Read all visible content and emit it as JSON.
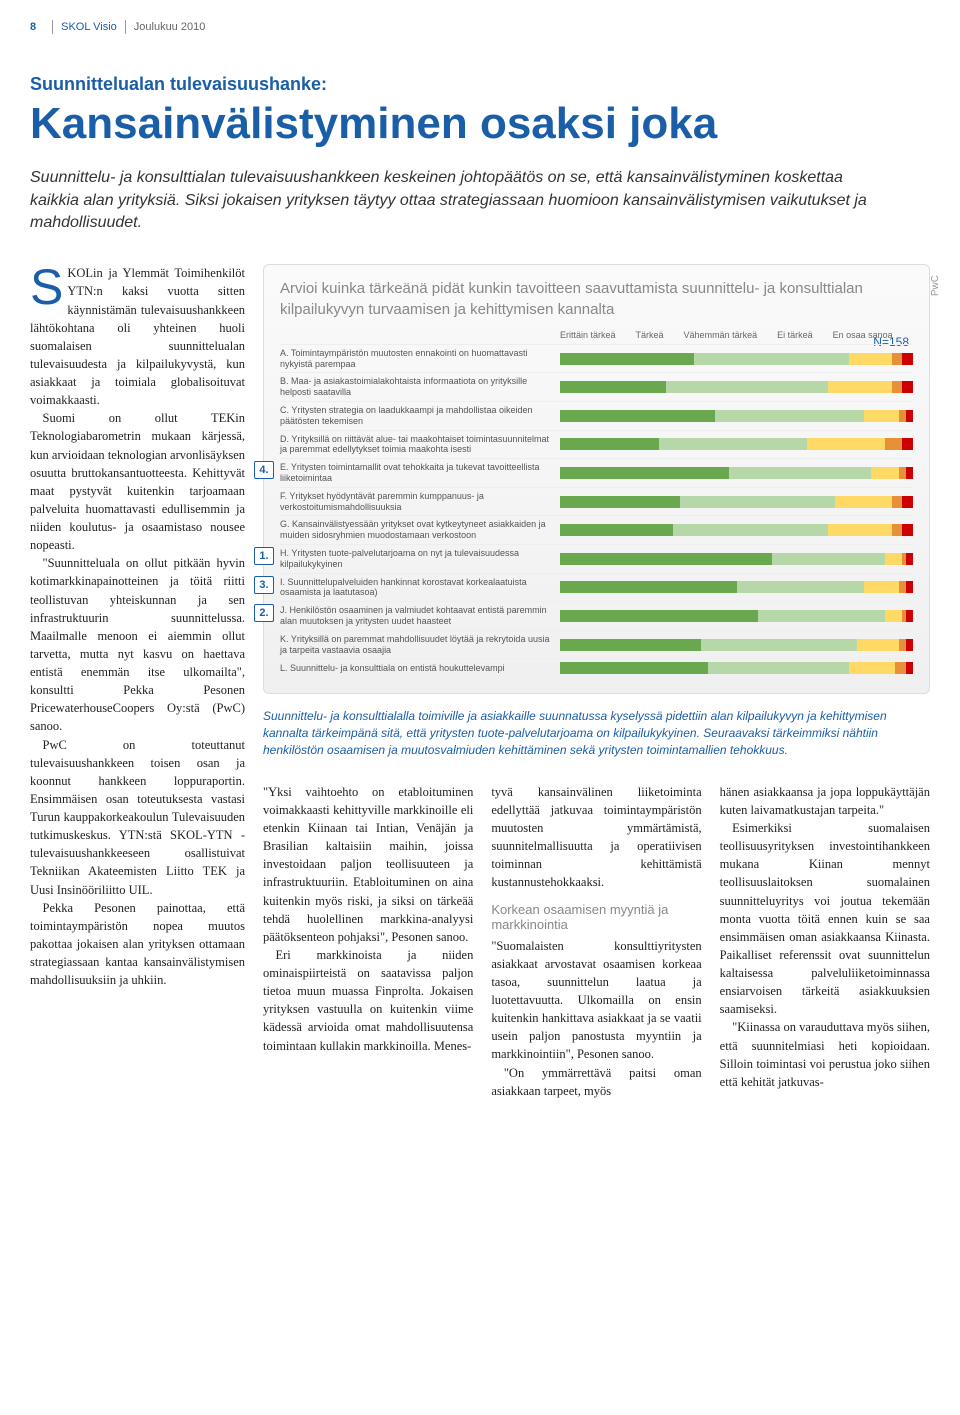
{
  "header": {
    "page_number": "8",
    "publication": "SKOL Visio",
    "issue": "Joulukuu 2010"
  },
  "article": {
    "kicker": "Suunnittelualan tulevaisuushanke:",
    "headline": "Kansainvälistyminen osaksi joka",
    "lead": "Suunnittelu- ja konsulttialan tulevaisuushankkeen keskeinen johtopäätös on se, että kansainvälistyminen koskettaa kaikkia alan yrityksiä. Siksi jokaisen yrityksen täytyy ottaa strategiassaan huomioon kansainvälistymisen vaikutukset ja mahdollisuudet."
  },
  "dropcap": "S",
  "left_col_paras": [
    "KOLin ja Ylemmät Toimihenkilöt YTN:n kaksi vuotta sitten käynnistämän tulevaisuushankkeen lähtökohtana oli yhteinen huoli suomalaisen suunnittelualan tulevaisuudesta ja kilpailukyvystä, kun asiakkaat ja toimiala globalisoituvat voimakkaasti.",
    "Suomi on ollut TEKin Teknologiabarometrin mukaan kärjessä, kun arvioidaan teknologian arvonlisäyksen osuutta bruttokansantuotteesta. Kehittyvät maat pystyvät kuitenkin tarjoamaan palveluita huomattavasti edullisemmin ja niiden koulutus- ja osaamistaso nousee nopeasti.",
    "\"Suunnitteluala on ollut pitkään hyvin kotimarkkinapainotteinen ja töitä riitti teollistuvan yhteiskunnan ja sen infrastruktuurin suunnittelussa. Maailmalle menoon ei aiemmin ollut tarvetta, mutta nyt kasvu on haettava entistä enemmän itse ulkomailta\", konsultti Pekka Pesonen PricewaterhouseCoopers Oy:stä (PwC) sanoo.",
    "PwC on toteuttanut tulevaisuushankkeen toisen osan ja koonnut hankkeen loppuraportin. Ensimmäisen osan toteutuksesta vastasi Turun kauppakorkeakoulun Tulevaisuuden tutkimuskeskus. YTN:stä SKOL-YTN -tulevaisuushankkeeseen osallistuivat Tekniikan Akateemisten Liitto TEK ja Uusi Insinööriliitto UIL.",
    "Pekka Pesonen painottaa, että toimintaympäristön nopea muutos pakottaa jokaisen alan yrityksen ottamaan strategiassaan kantaa kansainvälistymisen mahdollisuuksiin ja uhkiin."
  ],
  "chart": {
    "title": "Arvioi kuinka tärkeänä pidät kunkin tavoitteen saavuttamista suunnittelu- ja konsulttialan kilpailukyvyn turvaamisen ja kehittymisen kannalta",
    "n_label": "N=158",
    "source": "PwC",
    "legend": [
      "Erittäin tärkeä",
      "Tärkeä",
      "Vähemmän tärkeä",
      "Ei tärkeä",
      "En osaa sanoa"
    ],
    "colors": {
      "very_important": "#6aa84f",
      "important": "#b6d7a8",
      "less_important": "#ffd966",
      "not_important": "#e69138",
      "dont_know": "#cc0000"
    },
    "rows": [
      {
        "label": "A. Toimintaympäristön muutosten ennakointi on huomattavasti nykyistä parempaa",
        "segs": [
          38,
          44,
          12,
          3,
          3
        ]
      },
      {
        "label": "B. Maa- ja asiakastoimialakohtaista informaatiota on yrityksille helposti saatavilla",
        "segs": [
          30,
          46,
          18,
          3,
          3
        ]
      },
      {
        "label": "C. Yritysten strategia on laadukkaampi ja mahdollistaa oikeiden päätösten tekemisen",
        "segs": [
          44,
          42,
          10,
          2,
          2
        ]
      },
      {
        "label": "D. Yrityksillä on riittävät alue- tai maakohtaiset toimintasuunnitelmat ja paremmat edellytykset toimia maakohta isesti",
        "segs": [
          28,
          42,
          22,
          5,
          3
        ]
      },
      {
        "label": "E. Yritysten toimintamallit ovat tehokkaita ja tukevat tavoitteellista liiketoimintaa",
        "segs": [
          48,
          40,
          8,
          2,
          2
        ],
        "callout": "4."
      },
      {
        "label": "F. Yritykset hyödyntävät paremmin kumppanuus- ja verkostoitumismahdollisuuksia",
        "segs": [
          34,
          44,
          16,
          3,
          3
        ]
      },
      {
        "label": "G. Kansainvälistyessään yritykset ovat kytkeytyneet asiakkaiden ja muiden sidosryhmien muodostamaan verkostoon",
        "segs": [
          32,
          44,
          18,
          3,
          3
        ]
      },
      {
        "label": "H. Yritysten tuote-palvelutarjoama on nyt ja tulevaisuudessa kilpailukykyinen",
        "segs": [
          60,
          32,
          5,
          1,
          2
        ],
        "callout": "1."
      },
      {
        "label": "I. Suunnittelupalveluiden hankinnat korostavat korkealaatuista osaamista ja laatutasoa)",
        "segs": [
          50,
          36,
          10,
          2,
          2
        ],
        "callout": "3."
      },
      {
        "label": "J. Henkilöstön osaaminen ja valmiudet kohtaavat entistä paremmin alan muutoksen ja yritysten uudet haasteet",
        "segs": [
          56,
          36,
          5,
          1,
          2
        ],
        "callout": "2."
      },
      {
        "label": "K. Yrityksillä on paremmat mahdollisuudet löytää ja rekrytoida uusia ja tarpeita vastaavia osaajia",
        "segs": [
          40,
          44,
          12,
          2,
          2
        ]
      },
      {
        "label": "L. Suunnittelu- ja konsulttiala on entistä houkuttelevampi",
        "segs": [
          42,
          40,
          13,
          3,
          2
        ]
      }
    ]
  },
  "caption": "Suunnittelu- ja konsulttialalla toimiville ja asiakkaille suunnatussa kyselyssä pidettiin alan kilpailukyvyn ja kehittymisen kannalta tärkeimpänä sitä, että yritysten tuote-palvelutarjoama on kilpailukykyinen. Seuraavaksi tärkeimmiksi nähtiin henkilöstön osaamisen ja muutosvalmiuden kehittäminen sekä yritysten toimintamallien tehokkuus.",
  "lower": {
    "c1": [
      "\"Yksi vaihtoehto on etabloituminen voimakkaasti kehittyville markkinoille eli etenkin Kiinaan tai Intian, Venäjän ja Brasilian kaltaisiin maihin, joissa investoidaan paljon teollisuuteen ja infrastruktuuriin. Etabloituminen on aina kuitenkin myös riski, ja siksi on tärkeää tehdä huolellinen markkina-analyysi päätöksenteon pohjaksi\", Pesonen sanoo.",
      "Eri markkinoista ja niiden ominaispiirteistä on saatavissa paljon tietoa muun muassa Finprolta. Jokaisen yrityksen vastuulla on kuitenkin viime kädessä arvioida omat mahdollisuutensa toimintaan kullakin markkinoilla. Menes-"
    ],
    "c2_a": "tyvä kansainvälinen liiketoiminta edellyttää jatkuvaa toimintaympäristön muutosten ymmärtämistä, suunnitelmallisuutta ja operatiivisen toiminnan kehittämistä kustannustehokkaaksi.",
    "c2_sub": "Korkean osaamisen myyntiä ja markkinointia",
    "c2_b": [
      "\"Suomalaisten konsulttiyritysten asiakkaat arvostavat osaamisen korkeaa tasoa, suunnittelun laatua ja luotettavuutta. Ulkomailla on ensin kuitenkin hankittava asiakkaat ja se vaatii usein paljon panostusta myyntiin ja markkinointiin\", Pesonen sanoo.",
      "\"On ymmärrettävä paitsi oman asiakkaan tarpeet, myös"
    ],
    "c3": [
      "hänen asiakkaansa ja jopa loppukäyttäjän kuten laivamatkustajan tarpeita.\"",
      "Esimerkiksi suomalaisen teollisuusyrityksen investointihankkeen mukana Kiinan mennyt teollisuuslaitoksen suomalainen suunnitteluyritys voi joutua tekemään monta vuotta töitä ennen kuin se saa ensimmäisen oman asiakkaansa Kiinasta. Paikalliset referenssit ovat suunnittelun kaltaisessa palveluliiketoiminnassa ensiarvoisen tärkeitä asiakkuuksien saamiseksi.",
      "\"Kiinassa on varauduttava myös siihen, että suunnitelmiasi heti kopioidaan. Silloin toimintasi voi perustua joko siihen että kehität jatkuvas-"
    ]
  }
}
